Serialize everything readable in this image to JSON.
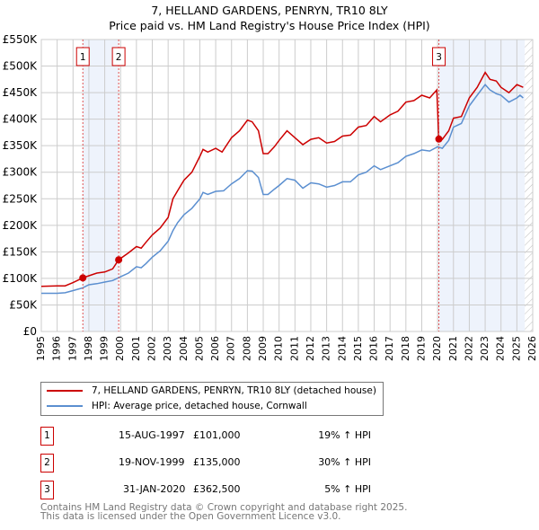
{
  "chart_data": {
    "type": "line",
    "title": "7, HELLAND GARDENS, PENRYN, TR10 8LY",
    "subtitle": "Price paid vs. HM Land Registry's House Price Index (HPI)",
    "xlim": [
      1995,
      2026
    ],
    "ylim": [
      0,
      550000
    ],
    "x_ticks": [
      "1995",
      "1996",
      "1997",
      "1998",
      "1999",
      "2000",
      "2001",
      "2002",
      "2003",
      "2004",
      "2005",
      "2006",
      "2007",
      "2008",
      "2009",
      "2010",
      "2011",
      "2012",
      "2013",
      "2014",
      "2015",
      "2016",
      "2017",
      "2018",
      "2019",
      "2020",
      "2021",
      "2022",
      "2023",
      "2024",
      "2025",
      "2026"
    ],
    "y_ticks": [
      {
        "v": 0,
        "label": "£0"
      },
      {
        "v": 50000,
        "label": "£50K"
      },
      {
        "v": 100000,
        "label": "£100K"
      },
      {
        "v": 150000,
        "label": "£150K"
      },
      {
        "v": 200000,
        "label": "£200K"
      },
      {
        "v": 250000,
        "label": "£250K"
      },
      {
        "v": 300000,
        "label": "£300K"
      },
      {
        "v": 350000,
        "label": "£350K"
      },
      {
        "v": 400000,
        "label": "£400K"
      },
      {
        "v": 450000,
        "label": "£450K"
      },
      {
        "v": 500000,
        "label": "£500K"
      },
      {
        "v": 550000,
        "label": "£550K"
      }
    ],
    "grid": true,
    "series": [
      {
        "name": "7, HELLAND GARDENS, PENRYN, TR10 8LY (detached house)",
        "color": "#cc0000",
        "x": [
          1995,
          1996,
          1996.5,
          1997,
          1997.62,
          1998,
          1998.5,
          1999,
          1999.5,
          1999.88,
          2000.5,
          2001,
          2001.3,
          2001.6,
          2002,
          2002.5,
          2003,
          2003.3,
          2003.6,
          2004,
          2004.5,
          2005,
          2005.2,
          2005.5,
          2006,
          2006.4,
          2007,
          2007.5,
          2008,
          2008.3,
          2008.7,
          2009,
          2009.3,
          2009.7,
          2010,
          2010.5,
          2011,
          2011.5,
          2012,
          2012.5,
          2013,
          2013.5,
          2014,
          2014.5,
          2015,
          2015.5,
          2016,
          2016.4,
          2017,
          2017.5,
          2018,
          2018.5,
          2019,
          2019.5,
          2019.95,
          2020.08,
          2020.3,
          2020.7,
          2021,
          2021.5,
          2022,
          2022.5,
          2023,
          2023.3,
          2023.7,
          2024,
          2024.5,
          2025,
          2025.4
        ],
        "y": [
          85,
          86,
          86,
          92,
          101,
          105,
          110,
          112,
          118,
          135,
          148,
          160,
          157,
          168,
          182,
          195,
          215,
          250,
          265,
          285,
          300,
          330,
          343,
          338,
          345,
          338,
          365,
          378,
          398,
          395,
          378,
          335,
          335,
          348,
          360,
          378,
          365,
          352,
          362,
          365,
          355,
          358,
          368,
          370,
          385,
          388,
          405,
          395,
          408,
          415,
          432,
          435,
          445,
          440,
          455,
          362.5,
          362,
          378,
          402,
          405,
          440,
          460,
          488,
          475,
          472,
          460,
          450,
          465,
          460
        ]
      },
      {
        "name": "HPI: Average price, detached house, Cornwall",
        "color": "#5b8fd0",
        "x": [
          1995,
          1996,
          1996.5,
          1997,
          1997.6,
          1998,
          1998.5,
          1999,
          1999.5,
          2000,
          2000.5,
          2001,
          2001.3,
          2001.6,
          2002,
          2002.5,
          2003,
          2003.3,
          2003.6,
          2004,
          2004.5,
          2005,
          2005.2,
          2005.5,
          2006,
          2006.5,
          2007,
          2007.5,
          2008,
          2008.3,
          2008.7,
          2009,
          2009.3,
          2009.7,
          2010,
          2010.5,
          2011,
          2011.5,
          2012,
          2012.5,
          2013,
          2013.5,
          2014,
          2014.5,
          2015,
          2015.5,
          2016,
          2016.4,
          2017,
          2017.5,
          2018,
          2018.5,
          2019,
          2019.5,
          2020,
          2020.3,
          2020.7,
          2021,
          2021.5,
          2022,
          2022.5,
          2023,
          2023.3,
          2023.7,
          2024,
          2024.5,
          2025,
          2025.2,
          2025.4
        ],
        "y": [
          72,
          72,
          73,
          77,
          82,
          88,
          90,
          93,
          96,
          103,
          110,
          122,
          120,
          128,
          140,
          152,
          170,
          190,
          205,
          220,
          232,
          250,
          262,
          258,
          264,
          265,
          278,
          288,
          303,
          302,
          290,
          258,
          258,
          268,
          275,
          288,
          285,
          270,
          280,
          278,
          272,
          275,
          282,
          282,
          295,
          300,
          312,
          305,
          312,
          318,
          330,
          335,
          342,
          340,
          348,
          345,
          360,
          385,
          392,
          425,
          445,
          465,
          455,
          448,
          445,
          432,
          440,
          445,
          440
        ]
      }
    ],
    "y_units": "thousands GBP",
    "sales": [
      {
        "label": "1",
        "x": 1997.62,
        "y": 101000,
        "date": "15-AUG-1997",
        "price": "£101,000",
        "hpi": "19% ↑ HPI"
      },
      {
        "label": "2",
        "x": 1999.88,
        "y": 135000,
        "date": "19-NOV-1999",
        "price": "£135,000",
        "hpi": "30% ↑ HPI"
      },
      {
        "label": "3",
        "x": 2020.08,
        "y": 362500,
        "date": "31-JAN-2020",
        "price": "£362,500",
        "hpi": "5% ↑ HPI"
      }
    ],
    "shaded_ranges": [
      [
        1997.62,
        1999.88
      ],
      [
        2020.08,
        2025.5
      ]
    ],
    "hatched_from": 2025.5,
    "legend_position": "below"
  },
  "footer": {
    "line1": "Contains HM Land Registry data © Crown copyright and database right 2025.",
    "line2": "This data is licensed under the Open Government Licence v3.0."
  }
}
